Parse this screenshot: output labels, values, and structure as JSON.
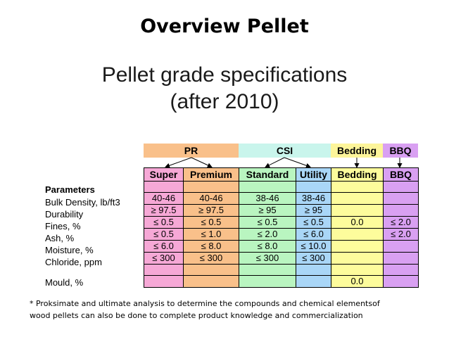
{
  "title": "Overview Pellet",
  "subtitle_line1": "Pellet grade specifications",
  "subtitle_line2": "(after 2010)",
  "groups": [
    {
      "label": "PR",
      "color": "#f9c08a"
    },
    {
      "label": "CSI",
      "color": "#c9f5ec"
    },
    {
      "label": "Bedding",
      "color": "#fdf59a"
    },
    {
      "label": "BBQ",
      "color": "#d9a0f2"
    }
  ],
  "columns": [
    {
      "label": "Super",
      "color": "#f6a8d6"
    },
    {
      "label": "Premium",
      "color": "#f9c08a"
    },
    {
      "label": "Standard",
      "color": "#b9f5c0"
    },
    {
      "label": "Utility",
      "color": "#a9d6f7"
    },
    {
      "label": "Bedding",
      "color": "#fdfc9c"
    },
    {
      "label": "BBQ",
      "color": "#d9a0f2"
    }
  ],
  "parameters_title": "Parameters",
  "rows": [
    {
      "label": "Bulk Density, lb/ft3",
      "values": [
        "40-46",
        "40-46",
        "38-46",
        "38-46",
        "",
        ""
      ]
    },
    {
      "label": "Durability",
      "values": [
        "≥ 97.5",
        "≥ 97.5",
        "≥ 95",
        "≥ 95",
        "",
        ""
      ]
    },
    {
      "label": "Fines, %",
      "values": [
        "≤ 0.5",
        "≤ 0.5",
        "≤ 0.5",
        "≤ 0.5",
        "0.0",
        "≤ 2.0"
      ]
    },
    {
      "label": "Ash, %",
      "values": [
        "≤ 0.5",
        "≤ 1.0",
        "≤ 2.0",
        "≤ 6.0",
        "",
        "≤ 2.0"
      ]
    },
    {
      "label": "Moisture, %",
      "values": [
        "≤ 6.0",
        "≤ 8.0",
        "≤ 8.0",
        "≤ 10.0",
        "",
        ""
      ]
    },
    {
      "label": "Chloride, ppm",
      "values": [
        "≤ 300",
        "≤ 300",
        "≤ 300",
        "≤ 300",
        "",
        ""
      ]
    },
    {
      "label": "Mould, %",
      "values": [
        "",
        "",
        "",
        "",
        "0.0",
        ""
      ]
    }
  ],
  "footnote_line1": "* Proksimate and ultimate analysis to determine the compounds and chemical elementsof",
  "footnote_line2": "wood pellets can also be done to complete product knowledge and commercialization"
}
